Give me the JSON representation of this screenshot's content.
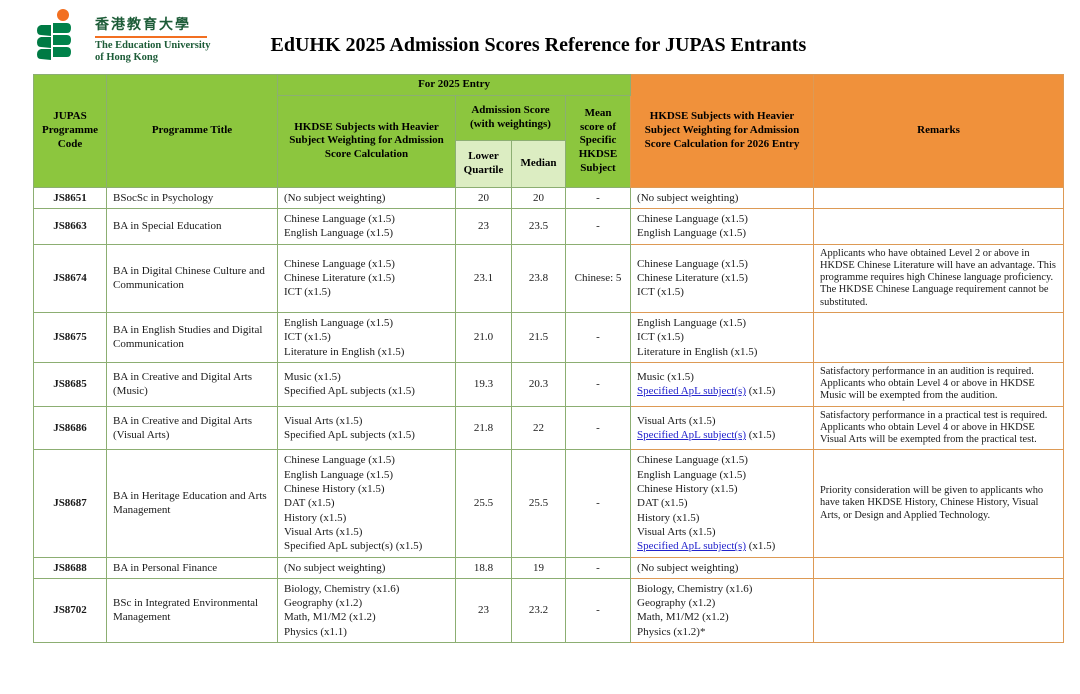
{
  "logo": {
    "name_cn": "香港教育大學",
    "name_en_line1": "The Education University",
    "name_en_line2": "of Hong Kong"
  },
  "page_title": "EdUHK 2025 Admission Scores Reference for JUPAS Entrants",
  "colors": {
    "header_green": "#8cc63e",
    "header_light_green": "#dcedc2",
    "header_orange": "#f0913b",
    "logo_green": "#00824a",
    "logo_orange": "#f26f21",
    "link_blue": "#2222cc"
  },
  "table": {
    "header": {
      "for_2025_entry": "For 2025 Entry",
      "jupas_code": "JUPAS Programme Code",
      "programme_title": "Programme Title",
      "subjects_2025": "HKDSE Subjects with Heavier Subject Weighting for Admission Score Calculation",
      "admission_score": "Admission Score (with weightings)",
      "lower_quartile": "Lower Quartile",
      "median": "Median",
      "mean_score": "Mean score of Specific HKDSE Subject",
      "subjects_2026": "HKDSE Subjects with Heavier Subject Weighting for Admission Score Calculation for 2026 Entry",
      "remarks": "Remarks"
    },
    "link_label": "Specified ApL subject(s)",
    "rows": [
      {
        "code": "JS8651",
        "title": "BSocSc in Psychology",
        "subjects_2025": [
          "(No subject weighting)"
        ],
        "lower_quartile": "20",
        "median": "20",
        "mean": "-",
        "subjects_2026": [
          "(No subject weighting)"
        ],
        "remarks": ""
      },
      {
        "code": "JS8663",
        "title": "BA in Special Education",
        "subjects_2025": [
          "Chinese Language (x1.5)",
          "English Language (x1.5)"
        ],
        "lower_quartile": "23",
        "median": "23.5",
        "mean": "-",
        "subjects_2026": [
          "Chinese Language (x1.5)",
          "English Language (x1.5)"
        ],
        "remarks": ""
      },
      {
        "code": "JS8674",
        "title": "BA in Digital Chinese Culture and Communication",
        "subjects_2025": [
          "Chinese Language (x1.5)",
          "Chinese Literature (x1.5)",
          "ICT (x1.5)"
        ],
        "lower_quartile": "23.1",
        "median": "23.8",
        "mean": "Chinese: 5",
        "subjects_2026": [
          "Chinese Language (x1.5)",
          "Chinese Literature (x1.5)",
          "ICT (x1.5)"
        ],
        "remarks": "Applicants who have obtained Level 2 or above in HKDSE Chinese Literature will have an advantage. This programme requires high Chinese language proficiency. The HKDSE Chinese Language requirement cannot be substituted."
      },
      {
        "code": "JS8675",
        "title": "BA in English Studies and Digital Communication",
        "subjects_2025": [
          "English Language (x1.5)",
          "ICT (x1.5)",
          "Literature in English (x1.5)"
        ],
        "lower_quartile": "21.0",
        "median": "21.5",
        "mean": "-",
        "subjects_2026": [
          "English Language (x1.5)",
          "ICT (x1.5)",
          "Literature in English (x1.5)"
        ],
        "remarks": ""
      },
      {
        "code": "JS8685",
        "title": "BA in Creative and Digital Arts (Music)",
        "subjects_2025": [
          "Music (x1.5)",
          "Specified ApL subjects (x1.5)"
        ],
        "lower_quartile": "19.3",
        "median": "20.3",
        "mean": "-",
        "subjects_2026": [
          "Music (x1.5)",
          {
            "link": "Specified ApL subject(s)",
            "after": " (x1.5)"
          }
        ],
        "remarks": "Satisfactory performance in an audition is required. Applicants who obtain Level 4 or above in HKDSE Music will be exempted from the audition."
      },
      {
        "code": "JS8686",
        "title": "BA in Creative and Digital Arts (Visual Arts)",
        "subjects_2025": [
          "Visual Arts (x1.5)",
          "Specified ApL subjects (x1.5)"
        ],
        "lower_quartile": "21.8",
        "median": "22",
        "mean": "-",
        "subjects_2026": [
          "Visual Arts (x1.5)",
          {
            "link": "Specified ApL subject(s)",
            "after": " (x1.5)"
          }
        ],
        "remarks": "Satisfactory performance in a practical test is required. Applicants who obtain Level 4 or above in HKDSE Visual Arts will be exempted from the practical test."
      },
      {
        "code": "JS8687",
        "title": "BA in Heritage Education and Arts Management",
        "subjects_2025": [
          "Chinese Language (x1.5)",
          "English Language (x1.5)",
          "Chinese History (x1.5)",
          "DAT (x1.5)",
          "History (x1.5)",
          "Visual Arts (x1.5)",
          "Specified ApL subject(s) (x1.5)"
        ],
        "lower_quartile": "25.5",
        "median": "25.5",
        "mean": "-",
        "subjects_2026": [
          "Chinese Language (x1.5)",
          "English Language (x1.5)",
          "Chinese History (x1.5)",
          "DAT (x1.5)",
          "History (x1.5)",
          "Visual Arts (x1.5)",
          {
            "link": "Specified ApL subject(s)",
            "after": " (x1.5)"
          }
        ],
        "remarks": "Priority consideration will be given to applicants who have taken HKDSE History, Chinese History, Visual Arts, or Design and Applied Technology."
      },
      {
        "code": "JS8688",
        "title": "BA in Personal Finance",
        "subjects_2025": [
          "(No subject weighting)"
        ],
        "lower_quartile": "18.8",
        "median": "19",
        "mean": "-",
        "subjects_2026": [
          "(No subject weighting)"
        ],
        "remarks": ""
      },
      {
        "code": "JS8702",
        "title": "BSc in Integrated Environmental Management",
        "subjects_2025": [
          "Biology, Chemistry (x1.6)",
          "Geography (x1.2)",
          "Math, M1/M2 (x1.2)",
          "Physics (x1.1)"
        ],
        "lower_quartile": "23",
        "median": "23.2",
        "mean": "-",
        "subjects_2026": [
          "Biology, Chemistry (x1.6)",
          "Geography (x1.2)",
          "Math, M1/M2 (x1.2)",
          "Physics (x1.2)*"
        ],
        "remarks": ""
      }
    ]
  }
}
